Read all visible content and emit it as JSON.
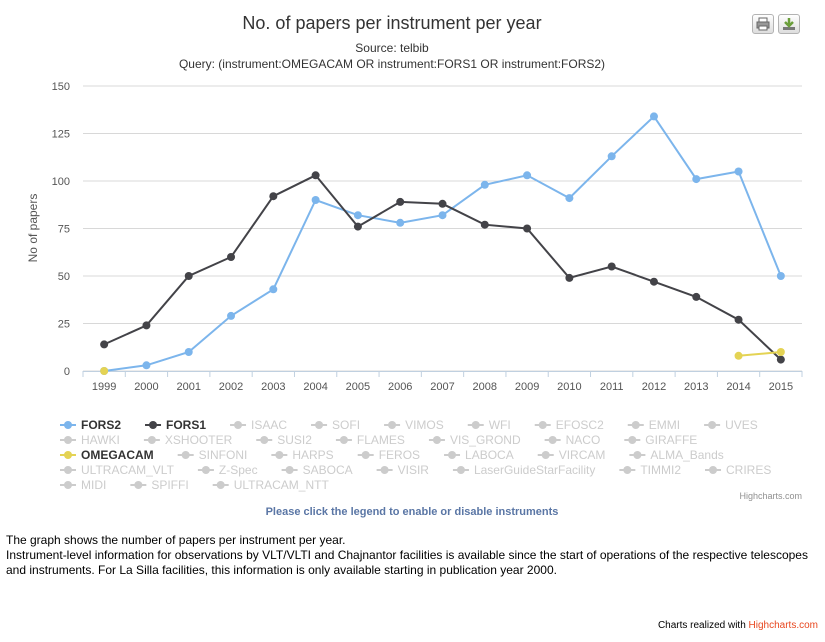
{
  "chart_data": {
    "type": "line",
    "title": "No. of papers per instrument per year",
    "subtitle_lines": [
      "Source: telbib",
      "Query: (instrument:OMEGACAM OR instrument:FORS1 OR instrument:FORS2)"
    ],
    "xlabel": "",
    "ylabel": "No of papers",
    "ylim": [
      0,
      150
    ],
    "yticks": [
      0,
      25,
      50,
      75,
      100,
      125,
      150
    ],
    "categories": [
      "1999",
      "2000",
      "2001",
      "2002",
      "2003",
      "2004",
      "2005",
      "2006",
      "2007",
      "2008",
      "2009",
      "2010",
      "2011",
      "2012",
      "2013",
      "2014",
      "2015"
    ],
    "series": [
      {
        "name": "FORS2",
        "color": "#7cb5ec",
        "values": [
          0,
          3,
          10,
          29,
          43,
          90,
          82,
          78,
          82,
          98,
          103,
          91,
          113,
          134,
          101,
          105,
          50
        ]
      },
      {
        "name": "FORS1",
        "color": "#434348",
        "values": [
          14,
          24,
          50,
          60,
          92,
          103,
          76,
          89,
          88,
          77,
          75,
          49,
          55,
          47,
          39,
          27,
          6
        ]
      },
      {
        "name": "OMEGACAM",
        "color": "#e4d354",
        "values": [
          0,
          null,
          null,
          null,
          null,
          null,
          null,
          null,
          null,
          null,
          null,
          null,
          null,
          null,
          null,
          8,
          10
        ]
      }
    ],
    "legend_rows": [
      [
        "FORS2",
        "FORS1",
        "ISAAC",
        "SOFI",
        "VIMOS",
        "WFI",
        "EFOSC2",
        "EMMI",
        "UVES"
      ],
      [
        "HAWKI",
        "XSHOOTER",
        "SUSI2",
        "FLAMES",
        "VIS_GROND",
        "NACO",
        "GIRAFFE"
      ],
      [
        "OMEGACAM",
        "SINFONI",
        "HARPS",
        "FEROS",
        "LABOCA",
        "VIRCAM",
        "ALMA_Bands"
      ],
      [
        "ULTRACAM_VLT",
        "Z-Spec",
        "SABOCA",
        "VISIR",
        "LaserGuideStarFacility",
        "TIMMI2",
        "CRIRES"
      ],
      [
        "MIDI",
        "SPIFFI",
        "ULTRACAM_NTT"
      ]
    ],
    "active": [
      "FORS2",
      "FORS1",
      "OMEGACAM"
    ],
    "grid": true,
    "legend_position": "bottom"
  },
  "credit": "Highcharts.com",
  "legend_hint": "Please click the legend to enable or disable instruments",
  "description_line1": "The graph shows the number of papers per instrument per year.",
  "description_line2": "Instrument-level information for observations by VLT/VLTI and Chajnantor facilities is available since the start of operations of the respective telescopes and instruments. For La Silla facilities, this information is only available starting in publication year 2000.",
  "footer_prefix": "Charts realized with ",
  "footer_link": "Highcharts.com",
  "buttons": {
    "print_icon": "printer-icon",
    "export_icon": "download-icon"
  }
}
